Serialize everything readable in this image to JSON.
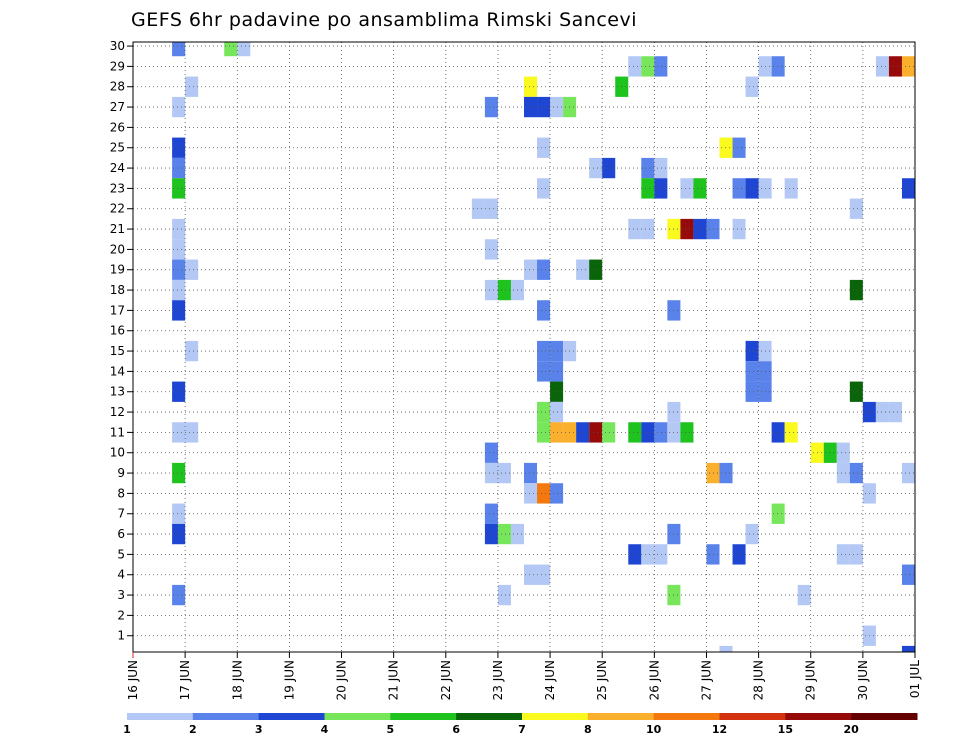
{
  "chart_data": {
    "type": "heatmap",
    "title": "GEFS 6hr padavine po ansamblima Rimski Sancevi",
    "xlabel": "",
    "ylabel": "",
    "x_ticks": [
      "16 JUN",
      "17 JUN",
      "18 JUN",
      "19 JUN",
      "20 JUN",
      "21 JUN",
      "22 JUN",
      "23 JUN",
      "24 JUN",
      "25 JUN",
      "26 JUN",
      "27 JUN",
      "28 JUN",
      "29 JUN",
      "30 JUN",
      "01 JUL"
    ],
    "x_range_days": [
      16.0,
      31.0
    ],
    "y_ticks": [
      1,
      2,
      3,
      4,
      5,
      6,
      7,
      8,
      9,
      10,
      11,
      12,
      13,
      14,
      15,
      16,
      17,
      18,
      19,
      20,
      21,
      22,
      23,
      24,
      25,
      26,
      27,
      28,
      29,
      30
    ],
    "y_range": [
      0.2,
      30.2
    ],
    "grid": true,
    "colorbar": {
      "labels": [
        "1",
        "2",
        "3",
        "4",
        "5",
        "6",
        "7",
        "8",
        "10",
        "12",
        "15",
        "20"
      ],
      "colors": [
        "#b4c8f5",
        "#5a82eb",
        "#1e46d2",
        "#78e65a",
        "#1ec31e",
        "#0a640a",
        "#fafa1e",
        "#faaf2d",
        "#f5780f",
        "#d2320f",
        "#960a0a",
        "#640000"
      ]
    },
    "cells": [
      {
        "member": 30,
        "day": 16.875,
        "level": 2
      },
      {
        "member": 30,
        "day": 17.875,
        "level": 4
      },
      {
        "member": 30,
        "day": 18.125,
        "level": 1
      },
      {
        "member": 29,
        "day": 25.625,
        "level": 1
      },
      {
        "member": 29,
        "day": 25.875,
        "level": 4
      },
      {
        "member": 29,
        "day": 26.125,
        "level": 2
      },
      {
        "member": 29,
        "day": 28.125,
        "level": 1
      },
      {
        "member": 29,
        "day": 28.375,
        "level": 2
      },
      {
        "member": 29,
        "day": 30.375,
        "level": 1
      },
      {
        "member": 29,
        "day": 30.625,
        "level": 11
      },
      {
        "member": 29,
        "day": 30.875,
        "level": 8
      },
      {
        "member": 28,
        "day": 17.125,
        "level": 1
      },
      {
        "member": 28,
        "day": 23.625,
        "level": 7
      },
      {
        "member": 28,
        "day": 25.375,
        "level": 5
      },
      {
        "member": 28,
        "day": 27.875,
        "level": 1
      },
      {
        "member": 27,
        "day": 16.875,
        "level": 1
      },
      {
        "member": 27,
        "day": 22.875,
        "level": 2
      },
      {
        "member": 27,
        "day": 23.625,
        "level": 3
      },
      {
        "member": 27,
        "day": 23.875,
        "level": 3
      },
      {
        "member": 27,
        "day": 24.125,
        "level": 1
      },
      {
        "member": 27,
        "day": 24.375,
        "level": 4
      },
      {
        "member": 25,
        "day": 16.875,
        "level": 3
      },
      {
        "member": 25,
        "day": 23.875,
        "level": 1
      },
      {
        "member": 25,
        "day": 27.375,
        "level": 7
      },
      {
        "member": 25,
        "day": 27.625,
        "level": 2
      },
      {
        "member": 24,
        "day": 16.875,
        "level": 2
      },
      {
        "member": 24,
        "day": 24.875,
        "level": 1
      },
      {
        "member": 24,
        "day": 25.125,
        "level": 3
      },
      {
        "member": 24,
        "day": 25.875,
        "level": 2
      },
      {
        "member": 24,
        "day": 26.125,
        "level": 1
      },
      {
        "member": 23,
        "day": 16.875,
        "level": 5
      },
      {
        "member": 23,
        "day": 23.875,
        "level": 1
      },
      {
        "member": 23,
        "day": 25.875,
        "level": 5
      },
      {
        "member": 23,
        "day": 26.125,
        "level": 3
      },
      {
        "member": 23,
        "day": 26.625,
        "level": 1
      },
      {
        "member": 23,
        "day": 26.875,
        "level": 5
      },
      {
        "member": 23,
        "day": 27.625,
        "level": 2
      },
      {
        "member": 23,
        "day": 27.875,
        "level": 3
      },
      {
        "member": 23,
        "day": 28.125,
        "level": 1
      },
      {
        "member": 23,
        "day": 28.625,
        "level": 1
      },
      {
        "member": 23,
        "day": 30.875,
        "level": 3
      },
      {
        "member": 22,
        "day": 22.625,
        "level": 1
      },
      {
        "member": 22,
        "day": 22.875,
        "level": 1
      },
      {
        "member": 22,
        "day": 29.875,
        "level": 1
      },
      {
        "member": 21,
        "day": 16.875,
        "level": 1
      },
      {
        "member": 21,
        "day": 25.625,
        "level": 1
      },
      {
        "member": 21,
        "day": 25.875,
        "level": 1
      },
      {
        "member": 21,
        "day": 26.375,
        "level": 7
      },
      {
        "member": 21,
        "day": 26.625,
        "level": 11
      },
      {
        "member": 21,
        "day": 26.875,
        "level": 3
      },
      {
        "member": 21,
        "day": 27.125,
        "level": 2
      },
      {
        "member": 21,
        "day": 27.625,
        "level": 1
      },
      {
        "member": 20,
        "day": 16.875,
        "level": 1
      },
      {
        "member": 20,
        "day": 22.875,
        "level": 1
      },
      {
        "member": 19,
        "day": 16.875,
        "level": 2
      },
      {
        "member": 19,
        "day": 17.125,
        "level": 1
      },
      {
        "member": 19,
        "day": 23.625,
        "level": 1
      },
      {
        "member": 19,
        "day": 23.875,
        "level": 2
      },
      {
        "member": 19,
        "day": 24.625,
        "level": 1
      },
      {
        "member": 19,
        "day": 24.875,
        "level": 6
      },
      {
        "member": 18,
        "day": 16.875,
        "level": 1
      },
      {
        "member": 18,
        "day": 22.875,
        "level": 1
      },
      {
        "member": 18,
        "day": 23.125,
        "level": 5
      },
      {
        "member": 18,
        "day": 23.375,
        "level": 1
      },
      {
        "member": 18,
        "day": 29.875,
        "level": 6
      },
      {
        "member": 17,
        "day": 16.875,
        "level": 3
      },
      {
        "member": 17,
        "day": 23.875,
        "level": 2
      },
      {
        "member": 17,
        "day": 26.375,
        "level": 2
      },
      {
        "member": 15,
        "day": 17.125,
        "level": 1
      },
      {
        "member": 15,
        "day": 23.875,
        "level": 2
      },
      {
        "member": 15,
        "day": 24.125,
        "level": 2
      },
      {
        "member": 15,
        "day": 24.375,
        "level": 1
      },
      {
        "member": 15,
        "day": 27.875,
        "level": 3
      },
      {
        "member": 15,
        "day": 28.125,
        "level": 1
      },
      {
        "member": 14,
        "day": 23.875,
        "level": 2
      },
      {
        "member": 14,
        "day": 24.125,
        "level": 2
      },
      {
        "member": 14,
        "day": 27.875,
        "level": 2
      },
      {
        "member": 14,
        "day": 28.125,
        "level": 2
      },
      {
        "member": 13,
        "day": 16.875,
        "level": 3
      },
      {
        "member": 13,
        "day": 24.125,
        "level": 6
      },
      {
        "member": 13,
        "day": 27.875,
        "level": 2
      },
      {
        "member": 13,
        "day": 28.125,
        "level": 2
      },
      {
        "member": 13,
        "day": 29.875,
        "level": 6
      },
      {
        "member": 12,
        "day": 23.875,
        "level": 4
      },
      {
        "member": 12,
        "day": 24.125,
        "level": 1
      },
      {
        "member": 12,
        "day": 26.375,
        "level": 1
      },
      {
        "member": 12,
        "day": 30.125,
        "level": 3
      },
      {
        "member": 12,
        "day": 30.375,
        "level": 1
      },
      {
        "member": 12,
        "day": 30.625,
        "level": 1
      },
      {
        "member": 11,
        "day": 16.875,
        "level": 1
      },
      {
        "member": 11,
        "day": 17.125,
        "level": 1
      },
      {
        "member": 11,
        "day": 23.875,
        "level": 4
      },
      {
        "member": 11,
        "day": 24.125,
        "level": 8
      },
      {
        "member": 11,
        "day": 24.375,
        "level": 8
      },
      {
        "member": 11,
        "day": 24.625,
        "level": 3
      },
      {
        "member": 11,
        "day": 24.875,
        "level": 11
      },
      {
        "member": 11,
        "day": 25.125,
        "level": 4
      },
      {
        "member": 11,
        "day": 25.625,
        "level": 5
      },
      {
        "member": 11,
        "day": 25.875,
        "level": 3
      },
      {
        "member": 11,
        "day": 26.125,
        "level": 2
      },
      {
        "member": 11,
        "day": 26.375,
        "level": 1
      },
      {
        "member": 11,
        "day": 26.625,
        "level": 5
      },
      {
        "member": 11,
        "day": 28.375,
        "level": 3
      },
      {
        "member": 11,
        "day": 28.625,
        "level": 7
      },
      {
        "member": 10,
        "day": 22.875,
        "level": 2
      },
      {
        "member": 10,
        "day": 29.125,
        "level": 7
      },
      {
        "member": 10,
        "day": 29.375,
        "level": 5
      },
      {
        "member": 10,
        "day": 29.625,
        "level": 1
      },
      {
        "member": 9,
        "day": 16.875,
        "level": 5
      },
      {
        "member": 9,
        "day": 22.875,
        "level": 1
      },
      {
        "member": 9,
        "day": 23.125,
        "level": 1
      },
      {
        "member": 9,
        "day": 23.625,
        "level": 2
      },
      {
        "member": 9,
        "day": 27.125,
        "level": 8
      },
      {
        "member": 9,
        "day": 27.375,
        "level": 2
      },
      {
        "member": 9,
        "day": 29.625,
        "level": 1
      },
      {
        "member": 9,
        "day": 29.875,
        "level": 2
      },
      {
        "member": 9,
        "day": 30.875,
        "level": 1
      },
      {
        "member": 8,
        "day": 23.625,
        "level": 1
      },
      {
        "member": 8,
        "day": 23.875,
        "level": 9
      },
      {
        "member": 8,
        "day": 24.125,
        "level": 2
      },
      {
        "member": 8,
        "day": 30.125,
        "level": 1
      },
      {
        "member": 7,
        "day": 16.875,
        "level": 1
      },
      {
        "member": 7,
        "day": 22.875,
        "level": 2
      },
      {
        "member": 7,
        "day": 28.375,
        "level": 4
      },
      {
        "member": 6,
        "day": 16.875,
        "level": 3
      },
      {
        "member": 6,
        "day": 22.875,
        "level": 3
      },
      {
        "member": 6,
        "day": 23.125,
        "level": 4
      },
      {
        "member": 6,
        "day": 23.375,
        "level": 1
      },
      {
        "member": 6,
        "day": 26.375,
        "level": 2
      },
      {
        "member": 6,
        "day": 27.875,
        "level": 1
      },
      {
        "member": 5,
        "day": 25.625,
        "level": 3
      },
      {
        "member": 5,
        "day": 25.875,
        "level": 1
      },
      {
        "member": 5,
        "day": 26.125,
        "level": 1
      },
      {
        "member": 5,
        "day": 27.125,
        "level": 2
      },
      {
        "member": 5,
        "day": 27.625,
        "level": 3
      },
      {
        "member": 5,
        "day": 29.625,
        "level": 1
      },
      {
        "member": 5,
        "day": 29.875,
        "level": 1
      },
      {
        "member": 4,
        "day": 23.625,
        "level": 1
      },
      {
        "member": 4,
        "day": 23.875,
        "level": 1
      },
      {
        "member": 4,
        "day": 30.875,
        "level": 2
      },
      {
        "member": 3,
        "day": 16.875,
        "level": 2
      },
      {
        "member": 3,
        "day": 23.125,
        "level": 1
      },
      {
        "member": 3,
        "day": 26.375,
        "level": 4
      },
      {
        "member": 3,
        "day": 28.875,
        "level": 1
      },
      {
        "member": 1,
        "day": 30.125,
        "level": 1
      },
      {
        "member": 0,
        "day": 27.375,
        "level": 1
      },
      {
        "member": 0,
        "day": 30.875,
        "level": 3
      }
    ]
  }
}
